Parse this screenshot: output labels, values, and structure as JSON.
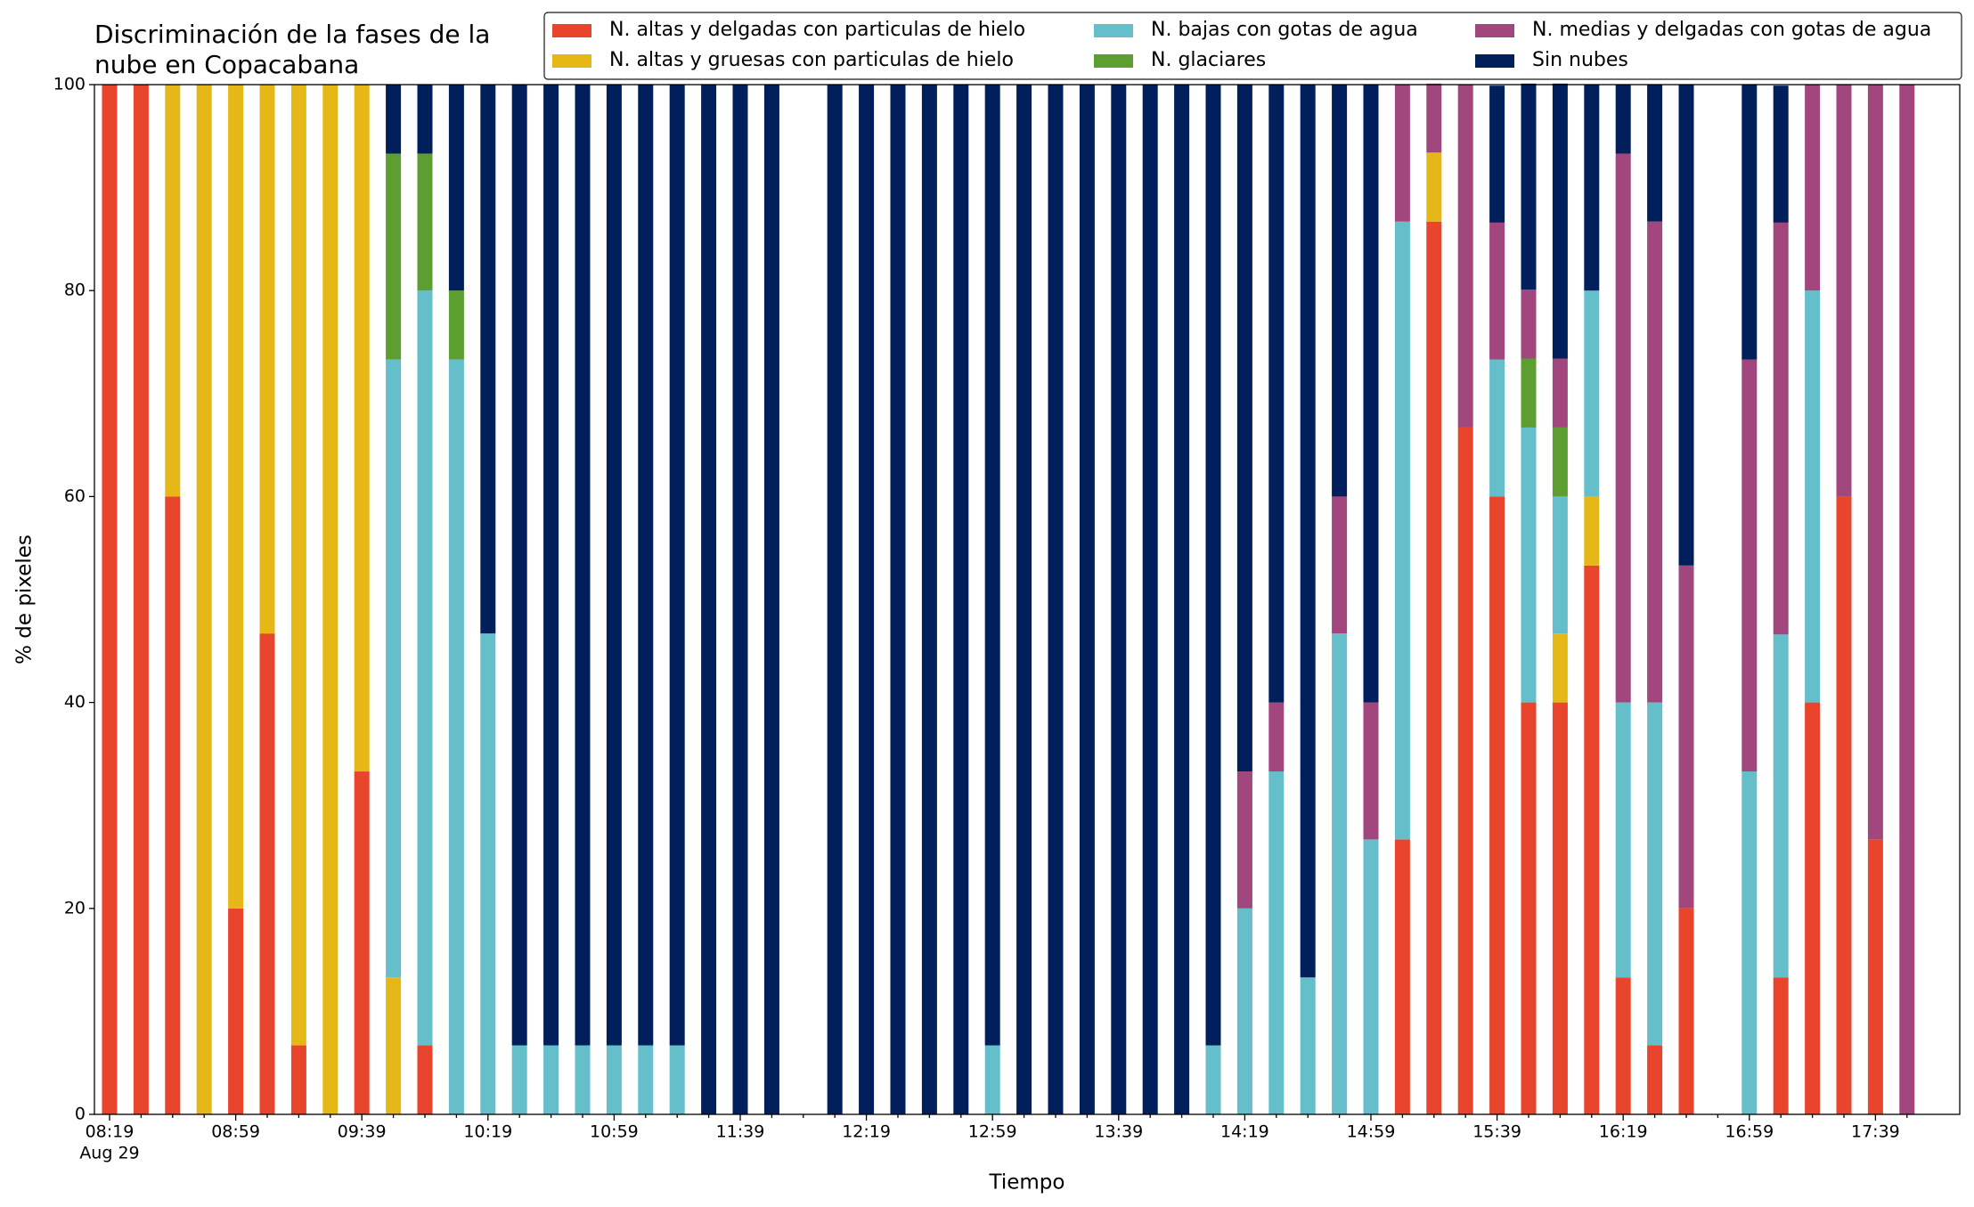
{
  "chart_data": {
    "type": "stacked_bar",
    "title": [
      "Discriminación de la fases de la",
      "nube en Copacabana"
    ],
    "xlabel": "Tiempo",
    "ylabel": "% de pixeles",
    "x_date_label": "Aug 29",
    "categories": [
      "08:19",
      null,
      null,
      null,
      "08:59",
      null,
      null,
      null,
      "09:39",
      null,
      null,
      null,
      "10:19",
      null,
      null,
      null,
      "10:59",
      null,
      null,
      null,
      "11:39",
      null,
      null,
      null,
      "12:19",
      null,
      null,
      null,
      "12:59",
      null,
      null,
      null,
      "13:39",
      null,
      null,
      null,
      "14:19",
      null,
      null,
      null,
      "14:59",
      null,
      null,
      null,
      "15:39",
      null,
      null,
      null,
      "16:19",
      null,
      null,
      null,
      "16:59",
      null,
      null,
      null,
      "17:39",
      null
    ],
    "series": [
      {
        "name": "N. altas y delgadas con particulas de hielo",
        "color": "#e8452c",
        "values": [
          100,
          100,
          60,
          0,
          20,
          46.7,
          6.7,
          0,
          33.3,
          0,
          6.7,
          0,
          0,
          0,
          0,
          0,
          0,
          0,
          0,
          0,
          0,
          0,
          null,
          0,
          0,
          0,
          0,
          0,
          0,
          0,
          0,
          0,
          0,
          0,
          0,
          0,
          0,
          0,
          0,
          0,
          0,
          26.7,
          86.7,
          66.7,
          60,
          40,
          40,
          53.3,
          13.3,
          6.7,
          20,
          null,
          0,
          13.3,
          40,
          60,
          26.7,
          0
        ]
      },
      {
        "name": "N. altas y gruesas con particulas de hielo",
        "color": "#e6b817",
        "values": [
          0,
          0,
          40,
          100,
          80,
          53.3,
          93.3,
          100,
          66.7,
          13.3,
          0,
          0,
          0,
          0,
          0,
          0,
          0,
          0,
          0,
          0,
          0,
          0,
          null,
          0,
          0,
          0,
          0,
          0,
          0,
          0,
          0,
          0,
          0,
          0,
          0,
          0,
          0,
          0,
          0,
          0,
          0,
          0,
          6.7,
          0,
          0,
          0,
          6.7,
          6.7,
          0,
          0,
          0,
          null,
          0,
          0,
          0,
          0,
          0,
          0
        ]
      },
      {
        "name": "N. bajas con gotas de agua",
        "color": "#65bfca",
        "values": [
          0,
          0,
          0,
          0,
          0,
          0,
          0,
          0,
          0,
          60,
          73.3,
          73.3,
          46.7,
          6.7,
          6.7,
          6.7,
          6.7,
          6.7,
          6.7,
          0,
          0,
          0,
          null,
          0,
          0,
          0,
          0,
          0,
          6.7,
          0,
          0,
          0,
          0,
          0,
          0,
          6.7,
          20,
          33.3,
          13.3,
          46.7,
          26.7,
          60,
          0,
          0,
          13.3,
          26.7,
          13.3,
          20,
          26.7,
          33.3,
          0,
          null,
          33.3,
          33.3,
          40,
          0,
          0,
          0
        ]
      },
      {
        "name": "N. glaciares",
        "color": "#5c9e2f",
        "values": [
          0,
          0,
          0,
          0,
          0,
          0,
          0,
          0,
          0,
          20,
          13.3,
          6.7,
          0,
          0,
          0,
          0,
          0,
          0,
          0,
          0,
          0,
          0,
          null,
          0,
          0,
          0,
          0,
          0,
          0,
          0,
          0,
          0,
          0,
          0,
          0,
          0,
          0,
          0,
          0,
          0,
          0,
          0,
          0,
          0,
          0,
          6.7,
          6.7,
          0,
          0,
          0,
          0,
          null,
          0,
          0,
          0,
          0,
          0,
          0
        ]
      },
      {
        "name": "N. medias y delgadas con gotas de agua",
        "color": "#a2467e",
        "values": [
          0,
          0,
          0,
          0,
          0,
          0,
          0,
          0,
          0,
          0,
          0,
          0,
          0,
          0,
          0,
          0,
          0,
          0,
          0,
          0,
          0,
          0,
          null,
          0,
          0,
          0,
          0,
          0,
          0,
          0,
          0,
          0,
          0,
          0,
          0,
          0,
          13.3,
          6.7,
          0,
          13.3,
          13.3,
          13.3,
          6.7,
          33.3,
          13.3,
          6.7,
          6.7,
          0,
          53.3,
          46.7,
          33.3,
          null,
          40,
          40,
          20,
          40,
          73.3,
          100
        ]
      },
      {
        "name": "Sin nubes",
        "color": "#011f5b",
        "values": [
          0,
          0,
          0,
          0,
          0,
          0,
          0,
          0,
          0,
          6.7,
          6.7,
          20,
          53.3,
          93.3,
          93.3,
          93.3,
          93.3,
          93.3,
          93.3,
          100,
          100,
          100,
          null,
          100,
          100,
          100,
          100,
          100,
          93.3,
          100,
          100,
          100,
          100,
          100,
          100,
          93.3,
          66.7,
          60,
          86.7,
          40,
          60,
          0,
          0,
          0,
          13.3,
          20,
          26.7,
          20,
          6.7,
          13.3,
          46.7,
          null,
          26.7,
          13.3,
          0,
          0,
          0,
          0
        ]
      }
    ],
    "ylim": [
      0,
      100
    ],
    "yticks": [
      0,
      20,
      40,
      60,
      80,
      100
    ],
    "legend": "upper right"
  }
}
